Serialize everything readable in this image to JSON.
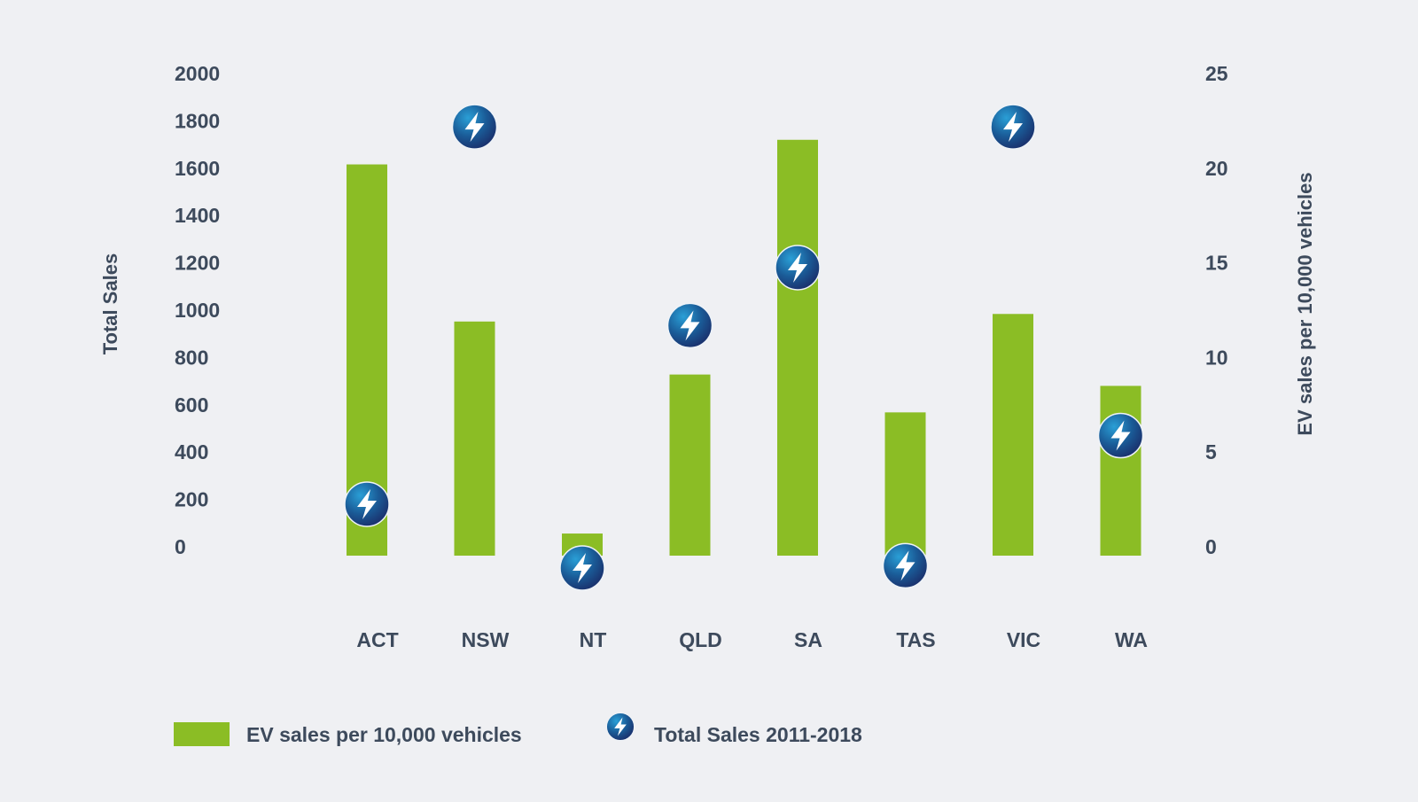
{
  "chart_data": {
    "type": "bar",
    "categories": [
      "ACT",
      "NSW",
      "NT",
      "QLD",
      "SA",
      "TAS",
      "VIC",
      "WA"
    ],
    "series": [
      {
        "name": "EV sales per 10,000 vehicles",
        "kind": "bar",
        "axis": "right",
        "color": "#8bbd25",
        "values": [
          20.2,
          11.9,
          0.7,
          9.1,
          21.5,
          7.1,
          12.3,
          8.5
        ]
      },
      {
        "name": "Total Sales 2011-2018",
        "kind": "marker",
        "axis": "left",
        "icon": "lightning-bolt-icon",
        "color": "#1c5d94",
        "values": [
          180,
          1775,
          -90,
          935,
          1180,
          -80,
          1775,
          470
        ]
      }
    ],
    "ylabel": "Total Sales",
    "y2label": "EV sales per 10,000 vehicles",
    "ylim": [
      0,
      2000
    ],
    "y2lim": [
      0,
      25
    ],
    "yticks": [
      "0",
      "200",
      "400",
      "600",
      "800",
      "1000",
      "1200",
      "1400",
      "1600",
      "1800",
      "2000"
    ],
    "y2ticks": [
      "0",
      "5",
      "10",
      "15",
      "20",
      "25"
    ],
    "grid": false,
    "legend_position": "bottom-left"
  }
}
